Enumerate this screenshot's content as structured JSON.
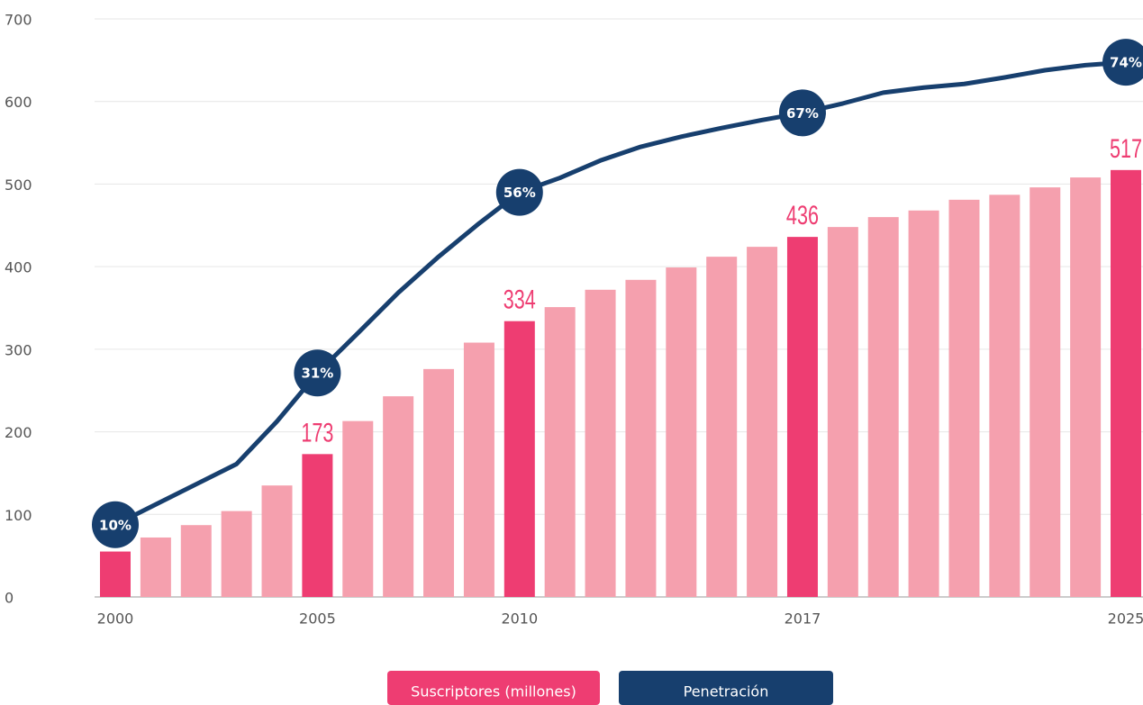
{
  "chart_data": {
    "type": "bar_line",
    "categories": [
      "2000",
      null,
      null,
      null,
      null,
      "2005",
      null,
      null,
      null,
      null,
      "2010",
      null,
      null,
      null,
      null,
      null,
      null,
      "2017",
      null,
      null,
      null,
      null,
      null,
      null,
      null,
      "2025"
    ],
    "series": [
      {
        "name": "Suscriptores (millones)",
        "type": "bar",
        "color": "#f5a0ae",
        "highlight_color": "#ee3d72",
        "values": [
          55,
          72,
          87,
          104,
          135,
          173,
          213,
          243,
          276,
          308,
          334,
          351,
          372,
          384,
          399,
          412,
          424,
          436,
          448,
          460,
          468,
          481,
          487,
          496,
          508,
          517
        ],
        "value_labels": [
          "55",
          null,
          null,
          null,
          null,
          "173",
          null,
          null,
          null,
          null,
          "334",
          null,
          null,
          null,
          null,
          null,
          null,
          "436",
          null,
          null,
          null,
          null,
          null,
          null,
          null,
          "517"
        ]
      },
      {
        "name": "Penetración",
        "type": "line",
        "axis": "y2",
        "color": "#173f6e",
        "values": [
          10,
          12.8,
          15.6,
          18.4,
          24.3,
          31,
          36.5,
          42.1,
          47.1,
          51.7,
          56,
          58,
          60.4,
          62.3,
          63.7,
          64.9,
          66,
          67,
          68.3,
          69.8,
          70.5,
          71,
          71.9,
          72.9,
          73.6,
          74
        ],
        "value_labels": [
          "10%",
          null,
          null,
          null,
          null,
          "31%",
          null,
          null,
          null,
          null,
          "56%",
          null,
          null,
          null,
          null,
          null,
          null,
          "67%",
          null,
          null,
          null,
          null,
          null,
          null,
          null,
          "74%"
        ]
      }
    ],
    "ylim": [
      0,
      700
    ],
    "yticks": [
      0,
      100,
      200,
      300,
      400,
      500,
      600,
      700
    ],
    "y2lim": [
      0,
      80
    ],
    "grid": true,
    "legend": "bottom"
  }
}
